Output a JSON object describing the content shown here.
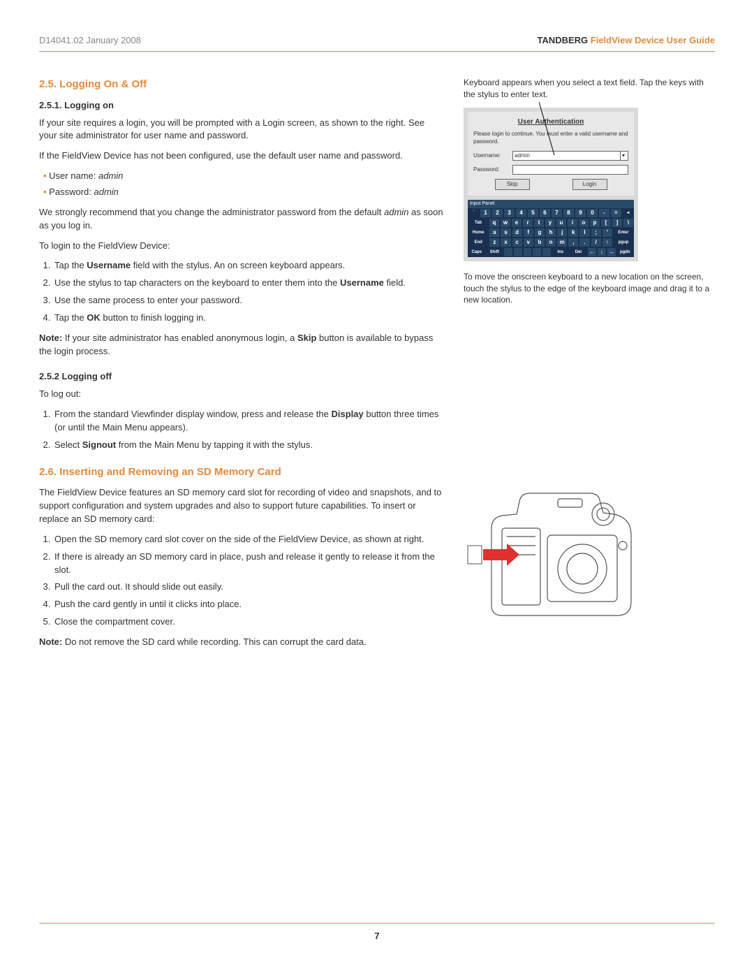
{
  "header": {
    "doc_id": "D14041.02 January 2008",
    "brand": "TANDBERG",
    "title_suffix": "FieldView Device User Guide"
  },
  "section25": {
    "heading": "2.5.  Logging On & Off",
    "sub1_heading": "2.5.1.  Logging on",
    "p1": "If your site requires a login, you will be prompted with a Login screen, as shown to the right. See your site administrator for user name and password.",
    "p2": "If the FieldView Device has not been configured, use the default user name and password.",
    "bullet_user_label": "User name: ",
    "bullet_user_val": "admin",
    "bullet_pass_label": "Password: ",
    "bullet_pass_val": "admin",
    "p3a": "We strongly recommend that you change the administrator password from the default ",
    "p3_em": "admin",
    "p3b": " as soon as you log in.",
    "p4": "To login to the FieldView Device:",
    "li1a": "Tap the ",
    "li1_b": "Username",
    "li1b": " field with the stylus. An on screen keyboard appears.",
    "li2a": "Use the stylus to tap characters on the keyboard to enter them into the ",
    "li2_b": "Username",
    "li2b": " field.",
    "li3": "Use the same process to enter your password.",
    "li4a": "Tap the ",
    "li4_b": "OK",
    "li4b": " button to finish logging in.",
    "note_label": "Note:",
    "note_a": " If your site administrator has enabled anonymous login, a ",
    "note_b": "Skip",
    "note_c": " button is available to bypass the login process.",
    "sub2_heading": "2.5.2 Logging off",
    "p5": "To log out:",
    "off_li1a": "From the standard Viewfinder display window, press and release the ",
    "off_li1_b": "Display",
    "off_li1b": " button three times (or until the Main Menu appears).",
    "off_li2a": "Select ",
    "off_li2_b": "Signout",
    "off_li2b": " from the Main Menu by tapping it with the stylus."
  },
  "section26": {
    "heading": "2.6.  Inserting and Removing an SD Memory Card",
    "p1": "The FieldView Device features an SD memory card slot for recording of video and snapshots, and to support configuration and system upgrades and also to support future capabilities. To insert or replace an SD memory card:",
    "li1": "Open the SD memory card slot cover on the side of the FieldView Device, as shown at right.",
    "li2": "If there is already an SD memory card in place, push and release it gently to release it from the slot.",
    "li3": "Pull the card out. It should slide out easily.",
    "li4": "Push the card gently in until it clicks into place.",
    "li5": "Close the compartment cover.",
    "note_label": "Note:",
    "note_text": " Do not remove the SD card while recording. This can corrupt the card data."
  },
  "side": {
    "caption1": "Keyboard appears when you select a text field. Tap the keys with the stylus to enter text.",
    "auth_title": "User Authentication",
    "auth_msg": "Please login to continue.  You must enter a valid username and password.",
    "username_label": "Username:",
    "username_value": "admin",
    "password_label": "Password:",
    "btn_skip": "Skip",
    "btn_login": "Login",
    "kbd_title": "Input Panel",
    "kbd_rows": [
      [
        "`",
        "1",
        "2",
        "3",
        "4",
        "5",
        "6",
        "7",
        "8",
        "9",
        "0",
        "-",
        "=",
        "◄"
      ],
      [
        "Tab",
        "q",
        "w",
        "e",
        "r",
        "t",
        "y",
        "u",
        "i",
        "o",
        "p",
        "[",
        "]",
        "\\"
      ],
      [
        "Home",
        "a",
        "s",
        "d",
        "f",
        "g",
        "h",
        "j",
        "k",
        "l",
        ";",
        "'",
        "Enter"
      ],
      [
        "End",
        "z",
        "x",
        "c",
        "v",
        "b",
        "n",
        "m",
        ",",
        ".",
        "/",
        "↑",
        "pgup"
      ],
      [
        "Caps",
        "Shift",
        "",
        "",
        "",
        "",
        "",
        "Ins",
        "Del",
        "←",
        "↓",
        "→",
        "pgdn"
      ]
    ],
    "caption2": "To move the onscreen keyboard to a new location on the screen, touch the stylus to the edge of the keyboard image and drag it to a new location."
  },
  "footer": {
    "page_number": "7"
  },
  "colors": {
    "accent": "#e68a3c",
    "text": "#333333",
    "muted": "#888888",
    "kbd_bg": "#2a4a6a"
  }
}
